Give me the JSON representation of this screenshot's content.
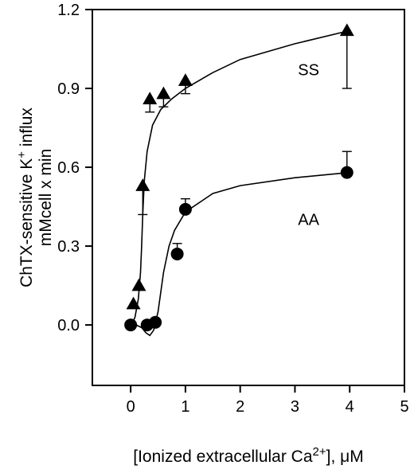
{
  "chart_data": {
    "type": "scatter",
    "title": "",
    "xlabel": "[Ionized extracellular Ca2+], μM",
    "ylabel_line1": "ChTX-sensitive K+ influx",
    "ylabel_line2": "mMcell x min",
    "xlim": [
      -0.7,
      5
    ],
    "ylim": [
      -0.23,
      1.2
    ],
    "xticks": [
      0,
      1,
      2,
      3,
      4,
      5
    ],
    "yticks": [
      0.0,
      0.3,
      0.6,
      0.9,
      1.2
    ],
    "xtick_labels": [
      "0",
      "1",
      "2",
      "3",
      "4",
      "5"
    ],
    "ytick_labels": [
      "0.0",
      "0.3",
      "0.6",
      "0.9",
      "1.2"
    ],
    "grid": false,
    "annotations": [
      {
        "text": "SS",
        "x": 3.25,
        "y": 0.95
      },
      {
        "text": "AA",
        "x": 3.25,
        "y": 0.38
      }
    ],
    "series": [
      {
        "marker": "triangle",
        "points": [
          {
            "x": 0.05,
            "y": 0.08
          },
          {
            "x": 0.15,
            "y": 0.15
          },
          {
            "x": 0.22,
            "y": 0.53
          },
          {
            "x": 0.35,
            "y": 0.86
          },
          {
            "x": 0.6,
            "y": 0.88
          },
          {
            "x": 1.0,
            "y": 0.93
          },
          {
            "x": 3.95,
            "y": 1.12
          }
        ],
        "error_bars": [
          {
            "x": 0.22,
            "y": 0.53,
            "low": 0.42
          },
          {
            "x": 0.35,
            "y": 0.86,
            "low": 0.81
          },
          {
            "x": 0.6,
            "y": 0.88,
            "low": 0.83
          },
          {
            "x": 1.0,
            "y": 0.93,
            "low": 0.88
          },
          {
            "x": 3.95,
            "y": 1.12,
            "low": 0.9
          }
        ],
        "fit": [
          [
            0.02,
            0.0
          ],
          [
            0.08,
            0.03
          ],
          [
            0.14,
            0.1
          ],
          [
            0.18,
            0.2
          ],
          [
            0.2,
            0.3
          ],
          [
            0.22,
            0.42
          ],
          [
            0.25,
            0.55
          ],
          [
            0.3,
            0.66
          ],
          [
            0.4,
            0.76
          ],
          [
            0.55,
            0.82
          ],
          [
            0.75,
            0.86
          ],
          [
            1.0,
            0.9
          ],
          [
            1.5,
            0.96
          ],
          [
            2.0,
            1.01
          ],
          [
            3.0,
            1.07
          ],
          [
            4.0,
            1.12
          ]
        ]
      },
      {
        "marker": "circle",
        "points": [
          {
            "x": 0.0,
            "y": 0.0
          },
          {
            "x": 0.3,
            "y": 0.0
          },
          {
            "x": 0.45,
            "y": 0.01
          },
          {
            "x": 0.85,
            "y": 0.27
          },
          {
            "x": 1.0,
            "y": 0.44
          },
          {
            "x": 3.95,
            "y": 0.58
          }
        ],
        "error_bars": [
          {
            "x": 0.85,
            "y": 0.27,
            "high": 0.31
          },
          {
            "x": 1.0,
            "y": 0.44,
            "high": 0.48
          },
          {
            "x": 3.95,
            "y": 0.58,
            "high": 0.66
          }
        ],
        "fit": [
          [
            0.0,
            0.0
          ],
          [
            0.1,
            0.0
          ],
          [
            0.2,
            -0.01
          ],
          [
            0.28,
            -0.03
          ],
          [
            0.35,
            -0.04
          ],
          [
            0.42,
            -0.02
          ],
          [
            0.5,
            0.05
          ],
          [
            0.6,
            0.2
          ],
          [
            0.7,
            0.3
          ],
          [
            0.8,
            0.36
          ],
          [
            1.0,
            0.43
          ],
          [
            1.5,
            0.5
          ],
          [
            2.0,
            0.53
          ],
          [
            3.0,
            0.56
          ],
          [
            4.0,
            0.58
          ]
        ]
      }
    ]
  }
}
